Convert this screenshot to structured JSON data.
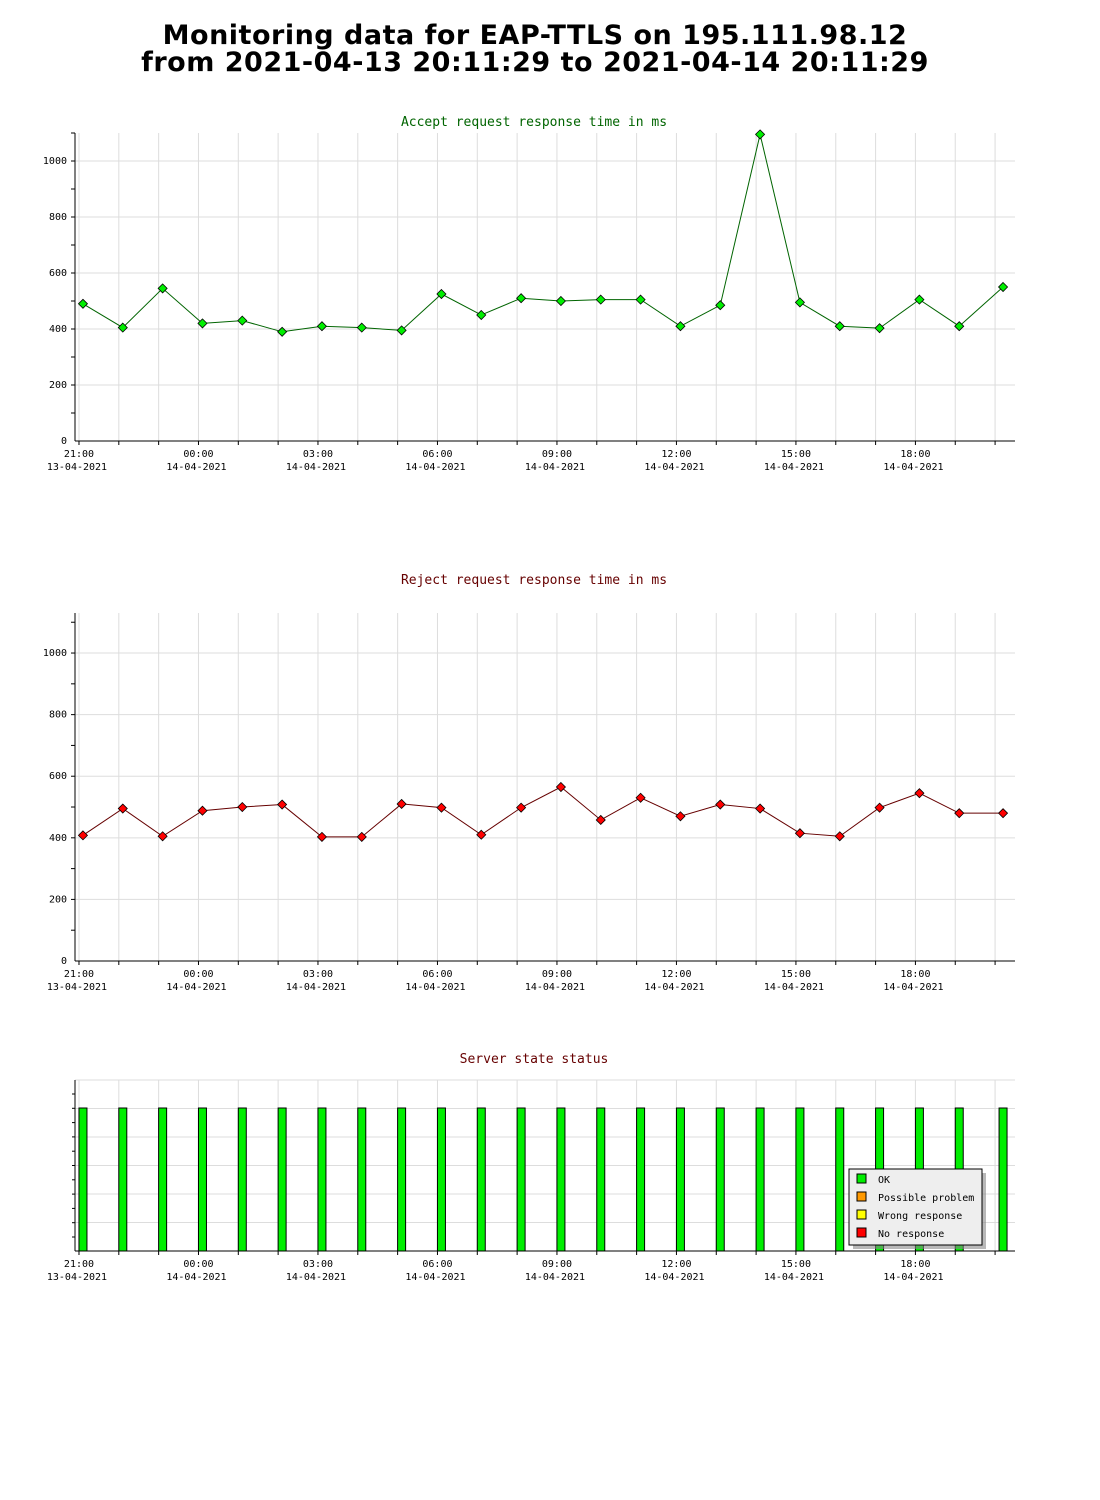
{
  "page": {
    "title_line1": "Monitoring data for EAP-TTLS on 195.111.98.12",
    "title_line2": "from 2021-04-13 20:11:29 to 2021-04-14 20:11:29"
  },
  "colors": {
    "accept_line": "#006400",
    "accept_marker": "#00ee00",
    "accept_title": "#006400",
    "reject_line": "#660000",
    "reject_marker": "#ff0000",
    "reject_title": "#660000",
    "status_title": "#660000",
    "grid": "#dddddd",
    "ok": "#00ee00",
    "possible_problem": "#ff9900",
    "wrong_response": "#ffff00",
    "no_response": "#ff0000"
  },
  "chart_data": [
    {
      "type": "line",
      "title": "Accept request response time in ms",
      "x_ticks": [
        {
          "hour": 21,
          "time": "21:00",
          "date": "13-04-2021"
        },
        {
          "hour": 24,
          "time": "00:00",
          "date": "14-04-2021"
        },
        {
          "hour": 27,
          "time": "03:00",
          "date": "14-04-2021"
        },
        {
          "hour": 30,
          "time": "06:00",
          "date": "14-04-2021"
        },
        {
          "hour": 33,
          "time": "09:00",
          "date": "14-04-2021"
        },
        {
          "hour": 36,
          "time": "12:00",
          "date": "14-04-2021"
        },
        {
          "hour": 39,
          "time": "15:00",
          "date": "14-04-2021"
        },
        {
          "hour": 42,
          "time": "18:00",
          "date": "14-04-2021"
        }
      ],
      "x": [
        21.1,
        22.1,
        23.1,
        24.1,
        25.1,
        26.1,
        27.1,
        28.1,
        29.1,
        30.1,
        31.1,
        32.1,
        33.1,
        34.1,
        35.1,
        36.1,
        37.1,
        38.1,
        39.1,
        40.1,
        41.1,
        42.1,
        43.1,
        44.2
      ],
      "values": [
        490,
        405,
        545,
        420,
        430,
        390,
        410,
        405,
        395,
        525,
        450,
        510,
        500,
        505,
        505,
        410,
        485,
        1095,
        495,
        410,
        403,
        505,
        410,
        550
      ],
      "ylim": [
        0,
        1100
      ],
      "y_ticks": [
        0,
        200,
        400,
        600,
        800,
        1000
      ],
      "grid": true
    },
    {
      "type": "line",
      "title": "Reject request response time in ms",
      "x_ticks": [
        {
          "hour": 21,
          "time": "21:00",
          "date": "13-04-2021"
        },
        {
          "hour": 24,
          "time": "00:00",
          "date": "14-04-2021"
        },
        {
          "hour": 27,
          "time": "03:00",
          "date": "14-04-2021"
        },
        {
          "hour": 30,
          "time": "06:00",
          "date": "14-04-2021"
        },
        {
          "hour": 33,
          "time": "09:00",
          "date": "14-04-2021"
        },
        {
          "hour": 36,
          "time": "12:00",
          "date": "14-04-2021"
        },
        {
          "hour": 39,
          "time": "15:00",
          "date": "14-04-2021"
        },
        {
          "hour": 42,
          "time": "18:00",
          "date": "14-04-2021"
        }
      ],
      "x": [
        21.1,
        22.1,
        23.1,
        24.1,
        25.1,
        26.1,
        27.1,
        28.1,
        29.1,
        30.1,
        31.1,
        32.1,
        33.1,
        34.1,
        35.1,
        36.1,
        37.1,
        38.1,
        39.1,
        40.1,
        41.1,
        42.1,
        43.1,
        44.2
      ],
      "values": [
        408,
        495,
        405,
        488,
        500,
        508,
        403,
        403,
        510,
        498,
        410,
        498,
        565,
        458,
        530,
        470,
        508,
        495,
        415,
        405,
        498,
        545,
        480,
        480
      ],
      "ylim": [
        0,
        1130
      ],
      "y_ticks": [
        0,
        200,
        400,
        600,
        800,
        1000
      ],
      "grid": true
    },
    {
      "type": "bar",
      "title": "Server state status",
      "x_ticks": [
        {
          "hour": 21,
          "time": "21:00",
          "date": "13-04-2021"
        },
        {
          "hour": 24,
          "time": "00:00",
          "date": "14-04-2021"
        },
        {
          "hour": 27,
          "time": "03:00",
          "date": "14-04-2021"
        },
        {
          "hour": 30,
          "time": "06:00",
          "date": "14-04-2021"
        },
        {
          "hour": 33,
          "time": "09:00",
          "date": "14-04-2021"
        },
        {
          "hour": 36,
          "time": "12:00",
          "date": "14-04-2021"
        },
        {
          "hour": 39,
          "time": "15:00",
          "date": "14-04-2021"
        },
        {
          "hour": 42,
          "time": "18:00",
          "date": "14-04-2021"
        }
      ],
      "x": [
        21.1,
        22.1,
        23.1,
        24.1,
        25.1,
        26.1,
        27.1,
        28.1,
        29.1,
        30.1,
        31.1,
        32.1,
        33.1,
        34.1,
        35.1,
        36.1,
        37.1,
        38.1,
        39.1,
        40.1,
        41.1,
        42.1,
        43.1,
        44.2
      ],
      "states": [
        "OK",
        "OK",
        "OK",
        "OK",
        "OK",
        "OK",
        "OK",
        "OK",
        "OK",
        "OK",
        "OK",
        "OK",
        "OK",
        "OK",
        "OK",
        "OK",
        "OK",
        "OK",
        "OK",
        "OK",
        "OK",
        "OK",
        "OK",
        "OK"
      ],
      "legend": {
        "placement": "bottom-right",
        "items": [
          {
            "label": "OK",
            "color": "#00ee00"
          },
          {
            "label": "Possible problem",
            "color": "#ff9900"
          },
          {
            "label": "Wrong response",
            "color": "#ffff00"
          },
          {
            "label": "No response",
            "color": "#ff0000"
          }
        ]
      }
    }
  ]
}
